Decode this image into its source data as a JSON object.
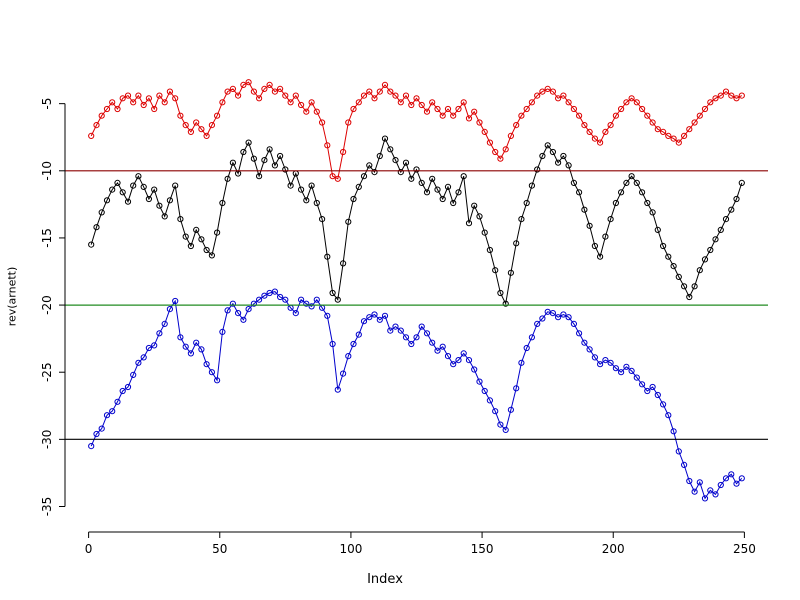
{
  "chart_data": {
    "type": "line",
    "title": "",
    "xlabel": "Index",
    "ylabel": "rev(arnett)",
    "xlim": [
      -9,
      259
    ],
    "ylim": [
      -36.9,
      -1.6
    ],
    "xticks": [
      0,
      50,
      100,
      150,
      200,
      250
    ],
    "yticks": [
      -35,
      -30,
      -25,
      -20,
      -15,
      -10,
      -5
    ],
    "grid": false,
    "legend": "none",
    "marker": "open-circle",
    "x_start": 1,
    "x_step": 2,
    "hlines": [
      {
        "y": -10,
        "color": "#8b0000"
      },
      {
        "y": -20,
        "color": "#228b22"
      },
      {
        "y": -30,
        "color": "#000000"
      }
    ],
    "series": [
      {
        "name": "red",
        "color": "#dd0000",
        "values": [
          -7.4,
          -6.6,
          -5.9,
          -5.4,
          -4.9,
          -5.4,
          -4.6,
          -4.4,
          -4.9,
          -4.4,
          -5.1,
          -4.6,
          -5.4,
          -4.4,
          -4.9,
          -4.1,
          -4.6,
          -5.9,
          -6.6,
          -7.1,
          -6.4,
          -6.9,
          -7.4,
          -6.6,
          -5.9,
          -4.9,
          -4.1,
          -3.9,
          -4.4,
          -3.6,
          -3.4,
          -4.1,
          -4.6,
          -3.9,
          -3.6,
          -4.1,
          -3.9,
          -4.4,
          -4.9,
          -4.4,
          -5.1,
          -5.6,
          -4.9,
          -5.6,
          -6.4,
          -8.1,
          -10.4,
          -10.6,
          -8.6,
          -6.4,
          -5.4,
          -4.9,
          -4.4,
          -4.1,
          -4.6,
          -4.1,
          -3.6,
          -4.1,
          -4.4,
          -4.9,
          -4.4,
          -5.1,
          -4.6,
          -5.1,
          -5.6,
          -4.9,
          -5.4,
          -5.9,
          -5.4,
          -5.9,
          -5.4,
          -4.9,
          -6.1,
          -5.6,
          -6.4,
          -7.1,
          -7.9,
          -8.6,
          -9.1,
          -8.4,
          -7.4,
          -6.6,
          -5.9,
          -5.4,
          -4.9,
          -4.4,
          -4.1,
          -3.9,
          -4.1,
          -4.6,
          -4.4,
          -4.9,
          -5.4,
          -5.9,
          -6.6,
          -7.1,
          -7.6,
          -7.9,
          -7.1,
          -6.6,
          -5.9,
          -5.4,
          -4.9,
          -4.6,
          -4.9,
          -5.4,
          -5.9,
          -6.4,
          -6.9,
          -7.1,
          -7.4,
          -7.6,
          -7.9,
          -7.4,
          -6.9,
          -6.4,
          -5.9,
          -5.4,
          -4.9,
          -4.6,
          -4.4,
          -4.1,
          -4.4,
          -4.6,
          -4.4
        ]
      },
      {
        "name": "black",
        "color": "#000000",
        "values": [
          -15.5,
          -14.2,
          -13.1,
          -12.2,
          -11.4,
          -10.9,
          -11.6,
          -12.3,
          -11.1,
          -10.4,
          -11.2,
          -12.1,
          -11.4,
          -12.6,
          -13.4,
          -12.2,
          -11.1,
          -13.6,
          -14.9,
          -15.6,
          -14.4,
          -15.1,
          -15.9,
          -16.3,
          -14.6,
          -12.4,
          -10.6,
          -9.4,
          -10.2,
          -8.6,
          -7.9,
          -9.1,
          -10.4,
          -9.2,
          -8.4,
          -9.6,
          -8.9,
          -9.9,
          -11.1,
          -10.2,
          -11.4,
          -12.2,
          -11.1,
          -12.4,
          -13.6,
          -16.4,
          -19.1,
          -19.6,
          -16.9,
          -13.8,
          -12.1,
          -11.2,
          -10.4,
          -9.6,
          -10.1,
          -8.9,
          -7.6,
          -8.4,
          -9.2,
          -10.1,
          -9.4,
          -10.6,
          -9.9,
          -10.9,
          -11.6,
          -10.6,
          -11.4,
          -12.1,
          -11.2,
          -12.4,
          -11.6,
          -10.4,
          -13.9,
          -12.6,
          -13.4,
          -14.6,
          -15.9,
          -17.4,
          -19.1,
          -19.9,
          -17.6,
          -15.4,
          -13.6,
          -12.4,
          -11.1,
          -9.9,
          -8.9,
          -8.1,
          -8.6,
          -9.4,
          -8.9,
          -9.6,
          -10.9,
          -11.6,
          -12.9,
          -14.1,
          -15.6,
          -16.4,
          -14.9,
          -13.6,
          -12.4,
          -11.6,
          -10.9,
          -10.4,
          -10.9,
          -11.6,
          -12.4,
          -13.1,
          -14.4,
          -15.6,
          -16.4,
          -17.1,
          -17.9,
          -18.6,
          -19.4,
          -18.6,
          -17.4,
          -16.6,
          -15.9,
          -15.1,
          -14.4,
          -13.6,
          -12.9,
          -12.1,
          -10.9
        ]
      },
      {
        "name": "blue",
        "color": "#0000cc",
        "values": [
          -30.5,
          -29.6,
          -29.2,
          -28.2,
          -27.9,
          -27.2,
          -26.4,
          -26.1,
          -25.2,
          -24.3,
          -23.9,
          -23.2,
          -23.0,
          -22.1,
          -21.4,
          -20.3,
          -19.7,
          -22.4,
          -23.1,
          -23.6,
          -22.8,
          -23.3,
          -24.4,
          -25.0,
          -25.6,
          -22.0,
          -20.4,
          -19.9,
          -20.6,
          -21.1,
          -20.3,
          -19.9,
          -19.6,
          -19.3,
          -19.1,
          -19.0,
          -19.4,
          -19.6,
          -20.2,
          -20.6,
          -19.6,
          -19.9,
          -20.1,
          -19.6,
          -20.2,
          -20.8,
          -22.9,
          -26.3,
          -25.1,
          -23.8,
          -22.9,
          -22.2,
          -21.2,
          -20.9,
          -20.7,
          -21.1,
          -20.8,
          -21.9,
          -21.6,
          -21.9,
          -22.4,
          -22.9,
          -22.4,
          -21.6,
          -22.1,
          -22.8,
          -23.4,
          -23.1,
          -23.8,
          -24.4,
          -24.1,
          -23.6,
          -24.1,
          -24.8,
          -25.7,
          -26.4,
          -27.1,
          -27.9,
          -28.9,
          -29.3,
          -27.8,
          -26.2,
          -24.3,
          -23.2,
          -22.4,
          -21.4,
          -21.0,
          -20.5,
          -20.6,
          -20.9,
          -20.7,
          -20.9,
          -21.4,
          -22.1,
          -22.8,
          -23.3,
          -23.9,
          -24.4,
          -24.1,
          -24.3,
          -24.7,
          -25.0,
          -24.6,
          -24.9,
          -25.4,
          -25.9,
          -26.4,
          -26.1,
          -26.7,
          -27.4,
          -28.2,
          -29.4,
          -30.9,
          -31.9,
          -33.1,
          -33.9,
          -33.2,
          -34.4,
          -33.8,
          -34.1,
          -33.4,
          -32.9,
          -32.6,
          -33.3,
          -32.9
        ]
      }
    ]
  }
}
